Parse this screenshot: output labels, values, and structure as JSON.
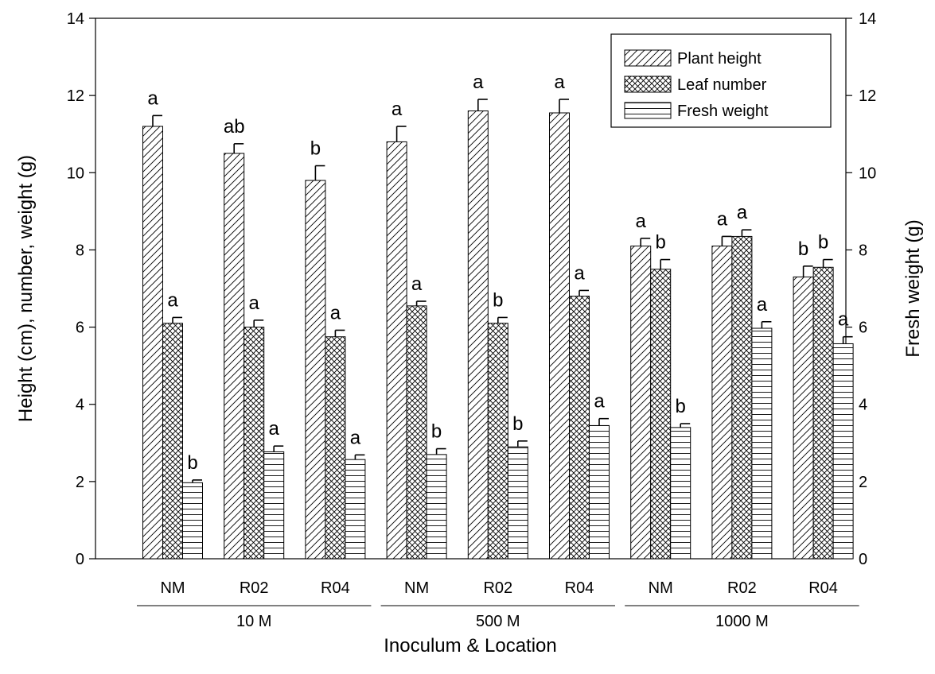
{
  "chart_data": {
    "type": "bar",
    "title": "",
    "xlabel": "Inoculum & Location",
    "ylabel": "Height (cm), number, weight (g)",
    "y2label": "Fresh weight (g)",
    "ylim": [
      0,
      14
    ],
    "y2lim": [
      0,
      14
    ],
    "yticks": [
      "0",
      "2",
      "4",
      "6",
      "8",
      "10",
      "12",
      "14"
    ],
    "y2ticks": [
      "0",
      "2",
      "4",
      "6",
      "8",
      "10",
      "12",
      "14"
    ],
    "grid": false,
    "legend_position": "top-right",
    "categories": [
      "NM",
      "R02",
      "R04",
      "NM",
      "R02",
      "R04",
      "NM",
      "R02",
      "R04"
    ],
    "groups": [
      {
        "label": "10 M",
        "span": [
          0,
          2
        ]
      },
      {
        "label": "500 M",
        "span": [
          3,
          5
        ]
      },
      {
        "label": "1000 M",
        "span": [
          6,
          8
        ]
      }
    ],
    "series": [
      {
        "name": "Plant height",
        "pattern": "diagonal",
        "values": [
          11.2,
          10.5,
          9.8,
          10.8,
          11.6,
          11.55,
          8.1,
          8.1,
          7.3
        ],
        "errors": [
          0.28,
          0.25,
          0.38,
          0.4,
          0.3,
          0.35,
          0.2,
          0.25,
          0.28
        ],
        "letters": [
          "a",
          "ab",
          "b",
          "a",
          "a",
          "a",
          "a",
          "a",
          "b"
        ]
      },
      {
        "name": "Leaf number",
        "pattern": "crosshatch",
        "values": [
          6.1,
          6.0,
          5.75,
          6.55,
          6.1,
          6.8,
          7.5,
          8.35,
          7.55
        ],
        "errors": [
          0.15,
          0.18,
          0.17,
          0.12,
          0.15,
          0.15,
          0.25,
          0.17,
          0.2
        ],
        "letters": [
          "a",
          "a",
          "a",
          "a",
          "b",
          "a",
          "b",
          "a",
          "b"
        ]
      },
      {
        "name": "Fresh weight",
        "pattern": "horizontal",
        "values": [
          1.97,
          2.77,
          2.57,
          2.7,
          2.9,
          3.45,
          3.4,
          5.97,
          5.57
        ],
        "errors": [
          0.07,
          0.15,
          0.12,
          0.15,
          0.15,
          0.18,
          0.1,
          0.17,
          0.18
        ],
        "letters": [
          "b",
          "a",
          "a",
          "b",
          "b",
          "a",
          "b",
          "a",
          "a"
        ]
      }
    ]
  }
}
